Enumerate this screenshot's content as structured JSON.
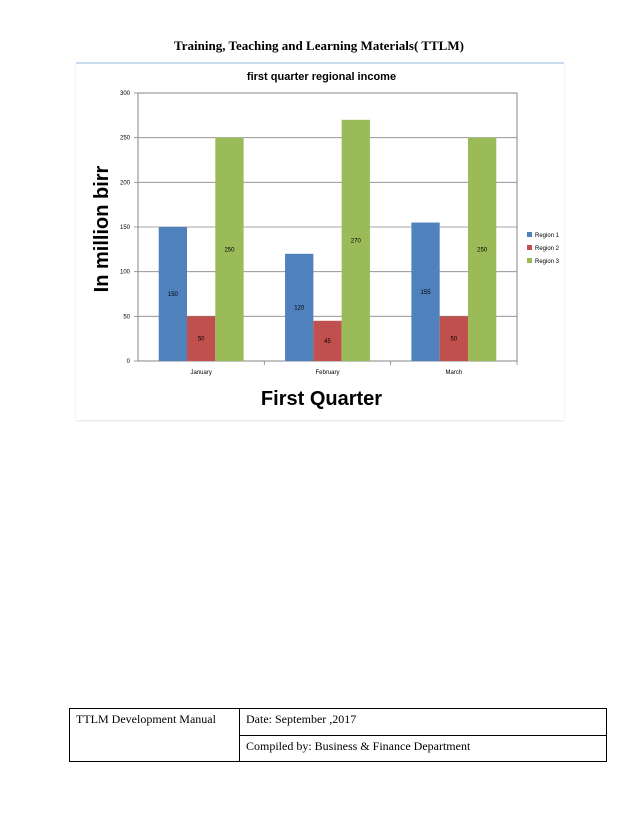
{
  "header": {
    "title": "Training, Teaching and Learning Materials( TTLM)"
  },
  "colors": {
    "region1": "#4f81bd",
    "region2": "#c0504d",
    "region3": "#9bbb59"
  },
  "chart_data": {
    "type": "bar",
    "title": "first quarter regional income",
    "xlabel": "First Quarter",
    "ylabel": "In million birr",
    "categories": [
      "January",
      "February",
      "March"
    ],
    "series": [
      {
        "name": "Region 1",
        "values": [
          150,
          120,
          155
        ]
      },
      {
        "name": "Region 2",
        "values": [
          50,
          45,
          50
        ]
      },
      {
        "name": "Region 3",
        "values": [
          250,
          270,
          250
        ]
      }
    ],
    "ylim": [
      0,
      300
    ],
    "yticks": [
      "0",
      "50",
      "100",
      "150",
      "200",
      "250",
      "300"
    ],
    "grid": true,
    "legend": "right"
  },
  "footer": {
    "manual": "TTLM Development Manual",
    "date": "Date: September ,2017",
    "compiled": "Compiled by: Business & Finance Department"
  }
}
